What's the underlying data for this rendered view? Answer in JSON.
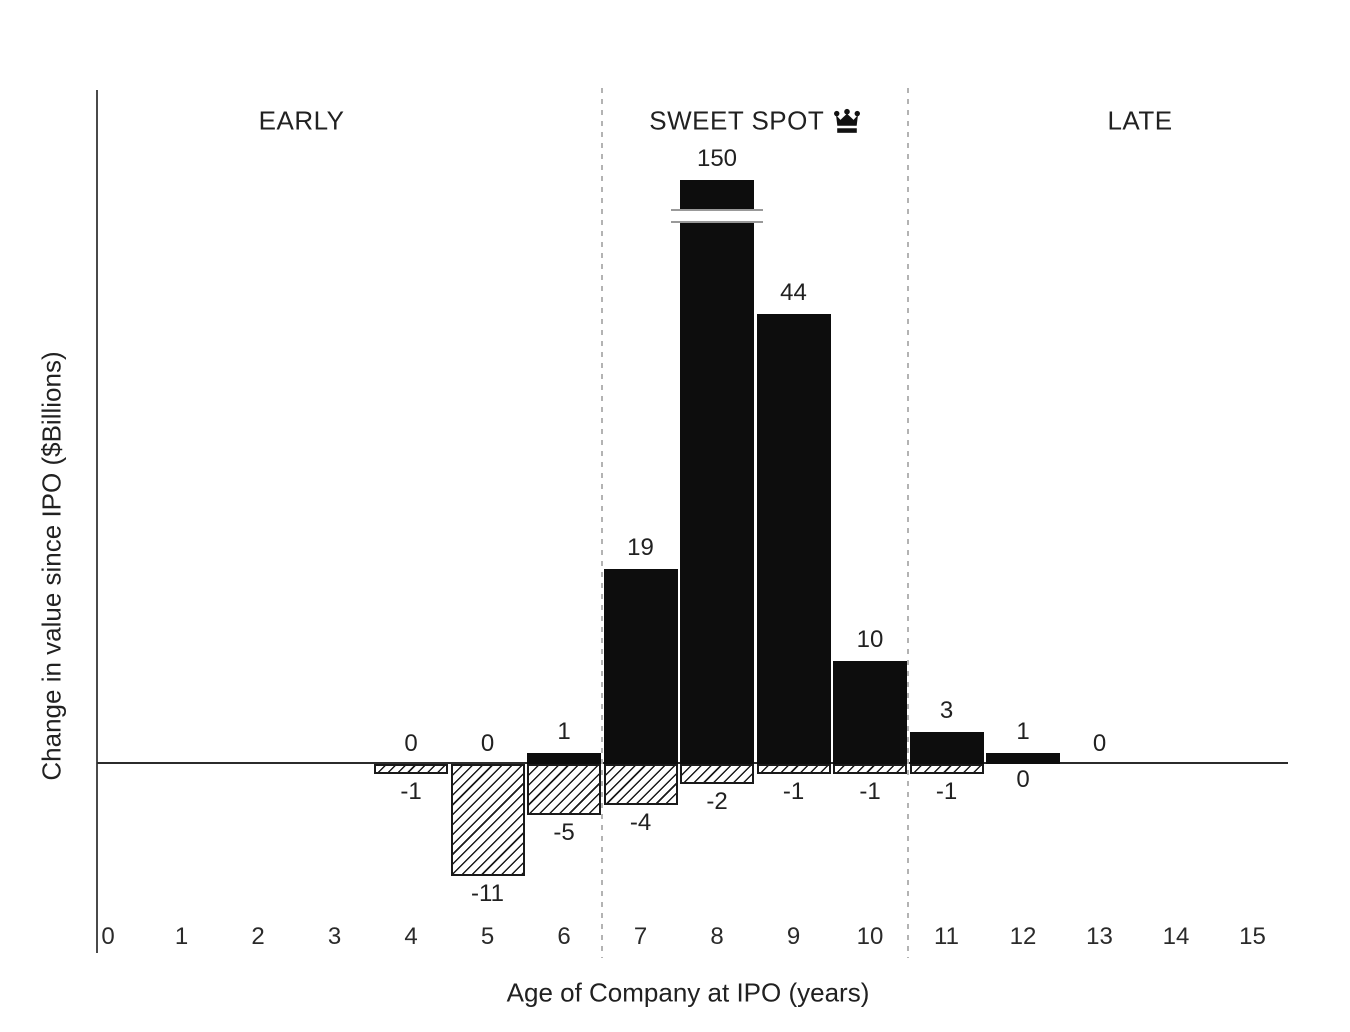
{
  "chart_data": {
    "type": "bar",
    "title": "",
    "xlabel": "Age of Company at IPO (years)",
    "ylabel": "Change in value since IPO ($Billions)",
    "x_ticks": [
      "0",
      "1",
      "2",
      "3",
      "4",
      "5",
      "6",
      "7",
      "8",
      "9",
      "10",
      "11",
      "12",
      "13",
      "14",
      "15"
    ],
    "xlim": [
      0,
      15.5
    ],
    "ylim": [
      -16,
      66
    ],
    "grid": false,
    "legend": "none",
    "y_axis_break": {
      "age": 8,
      "true_value": 150,
      "note": "bar for age 8 is truncated with an axis break"
    },
    "zone_boundaries": [
      6.5,
      10.5
    ],
    "zones": [
      {
        "label": "EARLY",
        "from": 0,
        "to": 6.5,
        "label_x": 2.57,
        "crown": false
      },
      {
        "label": "SWEET SPOT",
        "from": 6.5,
        "to": 10.5,
        "label_x": 8.5,
        "crown": true
      },
      {
        "label": "LATE",
        "from": 10.5,
        "to": 15.5,
        "label_x": 13.53,
        "crown": false
      }
    ],
    "series": [
      {
        "name": "gain",
        "style": "solid-black"
      },
      {
        "name": "loss",
        "style": "hatched"
      }
    ],
    "points": [
      {
        "age": 4,
        "gain": 0,
        "loss": -1
      },
      {
        "age": 5,
        "gain": 0,
        "loss": -11
      },
      {
        "age": 6,
        "gain": 1,
        "loss": -5
      },
      {
        "age": 7,
        "gain": 19,
        "loss": -4
      },
      {
        "age": 8,
        "gain": 150,
        "loss": -2,
        "axis_break": true
      },
      {
        "age": 9,
        "gain": 44,
        "loss": -1
      },
      {
        "age": 10,
        "gain": 10,
        "loss": -1
      },
      {
        "age": 11,
        "gain": 3,
        "loss": -1
      },
      {
        "age": 12,
        "gain": 1,
        "loss": 0
      },
      {
        "age": 13,
        "gain": 0,
        "loss": null
      }
    ]
  },
  "icons": {
    "crown": "crown-icon"
  },
  "colors": {
    "bar": "#0d0d0d",
    "hatch_line": "#1a1a1a",
    "text": "#212121",
    "y_axis": "#4a4a4a",
    "baseline": "#2b2b2b",
    "dashed_divider": "#b3b3b3",
    "break_line": "#999999",
    "background": "#ffffff"
  }
}
